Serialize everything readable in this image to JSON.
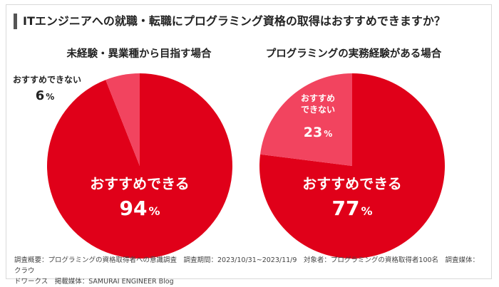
{
  "title": "ITエンジニアへの就職・転職にプログラミング資格の取得はおすすめできますか？",
  "colors": {
    "major": "#e00019",
    "minor": "#f2445f",
    "text_on_slice": "#ffffff",
    "title_bar": "#555555"
  },
  "chart_data": [
    {
      "type": "pie",
      "title": "未経験・異業種から目指す場合",
      "slices": [
        {
          "label": "おすすめできる",
          "value": 94,
          "unit": "%"
        },
        {
          "label": "おすすめできない",
          "value": 6,
          "unit": "%"
        }
      ]
    },
    {
      "type": "pie",
      "title": "プログラミングの実務経験がある場合",
      "slices": [
        {
          "label": "おすすめできる",
          "value": 77,
          "unit": "%"
        },
        {
          "label": "おすすめ\nできない",
          "value": 23,
          "unit": "%"
        }
      ]
    }
  ],
  "footnote": {
    "line1": "調査概要：プログラミングの資格取得者への意識調査　調査期間：2023/10/31~2023/11/9　対象者：プログラミングの資格取得者100名　調査媒体：クラウ",
    "line2": "ドワークス　掲載媒体：SAMURAI ENGINEER Blog"
  }
}
